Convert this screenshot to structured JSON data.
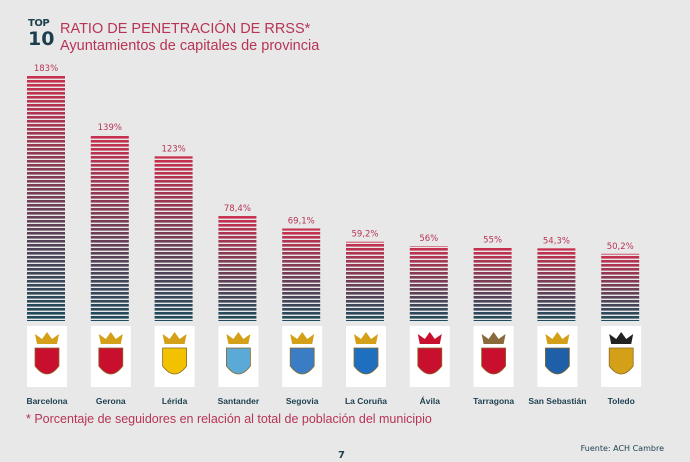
{
  "header": {
    "badge_top": "TOP",
    "badge_num": "10"
  },
  "chart_data": {
    "type": "bar",
    "title": "RATIO DE PENETRACIÓN DE RRSS*",
    "subtitle": "Ayuntamientos de capitales de provincia",
    "categories": [
      "Barcelona",
      "Gerona",
      "Lérida",
      "Santander",
      "Segovia",
      "La Coruña",
      "Ávila",
      "Tarragona",
      "San Sebastián",
      "Toledo"
    ],
    "values": [
      183,
      139,
      123,
      78.4,
      69.1,
      59.2,
      56,
      55,
      54.3,
      50.2
    ],
    "data_labels": [
      "183%",
      "139%",
      "123%",
      "78,4%",
      "69,1%",
      "59,2%",
      "56%",
      "55%",
      "54,3%",
      "50,2%"
    ],
    "ylim": [
      0,
      183
    ],
    "grid": false,
    "colors": {
      "bar_top": "#c9304f",
      "bar_bottom": "#1d4b5b",
      "label": "#b73455",
      "category": "#1c3f4f"
    }
  },
  "footnote": "* Porcentaje de seguidores en relación al total de población del municipio",
  "source": "Fuente: ACH Cambre",
  "page_number": "7"
}
